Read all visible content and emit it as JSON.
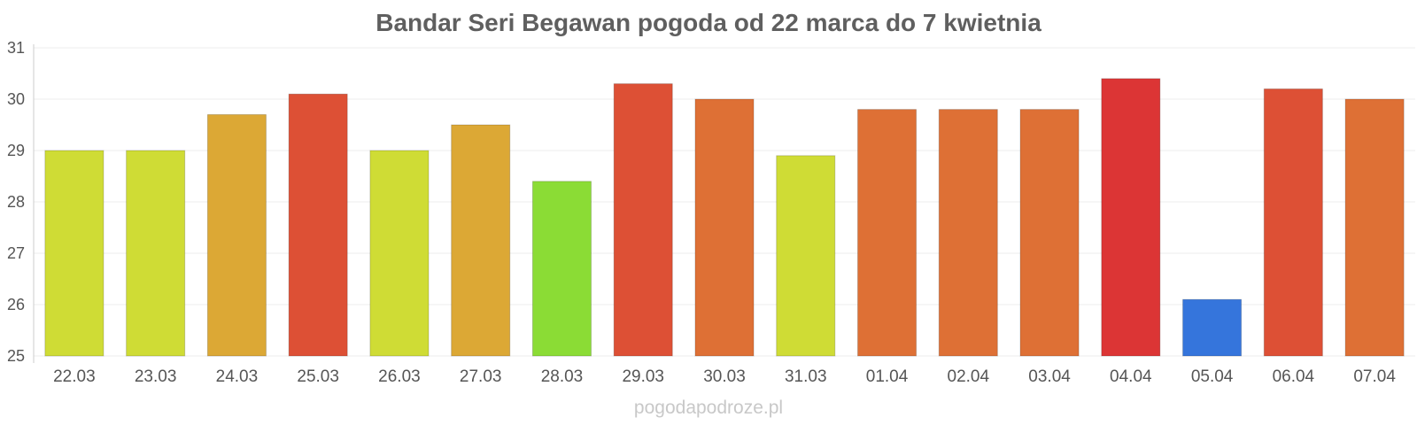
{
  "title": "Bandar Seri Begawan pogoda od 22 marca do 7 kwietnia",
  "watermark": "pogodapodroze.pl",
  "chart_data": {
    "type": "bar",
    "title": "Bandar Seri Begawan pogoda od 22 marca do 7 kwietnia",
    "xlabel": "",
    "ylabel": "",
    "ylim": [
      25,
      31
    ],
    "yticks": [
      25,
      26,
      27,
      28,
      29,
      30,
      31
    ],
    "grid": true,
    "categories": [
      "22.03",
      "23.03",
      "24.03",
      "25.03",
      "26.03",
      "27.03",
      "28.03",
      "29.03",
      "30.03",
      "31.03",
      "01.04",
      "02.04",
      "03.04",
      "04.04",
      "05.04",
      "06.04",
      "07.04"
    ],
    "values": [
      29.0,
      29.0,
      29.7,
      30.1,
      29.0,
      29.5,
      28.4,
      30.3,
      30.0,
      28.9,
      29.8,
      29.8,
      29.8,
      30.4,
      26.1,
      30.2,
      30.0
    ],
    "colors": [
      "#cfdc35",
      "#cfdc35",
      "#dca835",
      "#dd5035",
      "#cfdc35",
      "#dca835",
      "#8bdc35",
      "#dd5035",
      "#de7035",
      "#cfdc35",
      "#de7035",
      "#de7035",
      "#de7035",
      "#dc3535",
      "#3575dc",
      "#dd5035",
      "#de7035"
    ]
  }
}
